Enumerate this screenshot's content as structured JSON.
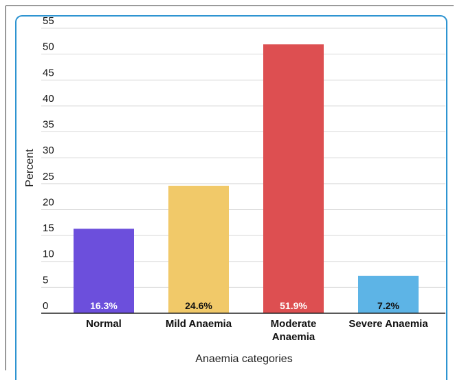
{
  "chart_data": {
    "type": "bar",
    "title": "",
    "xlabel": "Anaemia categories",
    "ylabel": "Percent",
    "ylim": [
      0,
      55
    ],
    "yticks": [
      "0",
      "5",
      "10",
      "15",
      "20",
      "25",
      "30",
      "35",
      "40",
      "45",
      "50",
      "55"
    ],
    "grid": true,
    "categories": [
      "Normal",
      "Mild Anaemia",
      "Moderate Anaemia",
      "Severe Anaemia"
    ],
    "category_lines": [
      [
        "Normal"
      ],
      [
        "Mild Anaemia"
      ],
      [
        "Moderate",
        "Anaemia"
      ],
      [
        "Severe Anaemia"
      ]
    ],
    "values": [
      16.3,
      24.6,
      51.9,
      7.2
    ],
    "data_labels": [
      "16.3%",
      "24.6%",
      "51.9%",
      "7.2%"
    ],
    "colors": [
      "#6c4fdc",
      "#f1c969",
      "#dd4f51",
      "#5db4e6"
    ],
    "label_colors": [
      "#ffffff",
      "#111111",
      "#ffffff",
      "#111111"
    ]
  }
}
